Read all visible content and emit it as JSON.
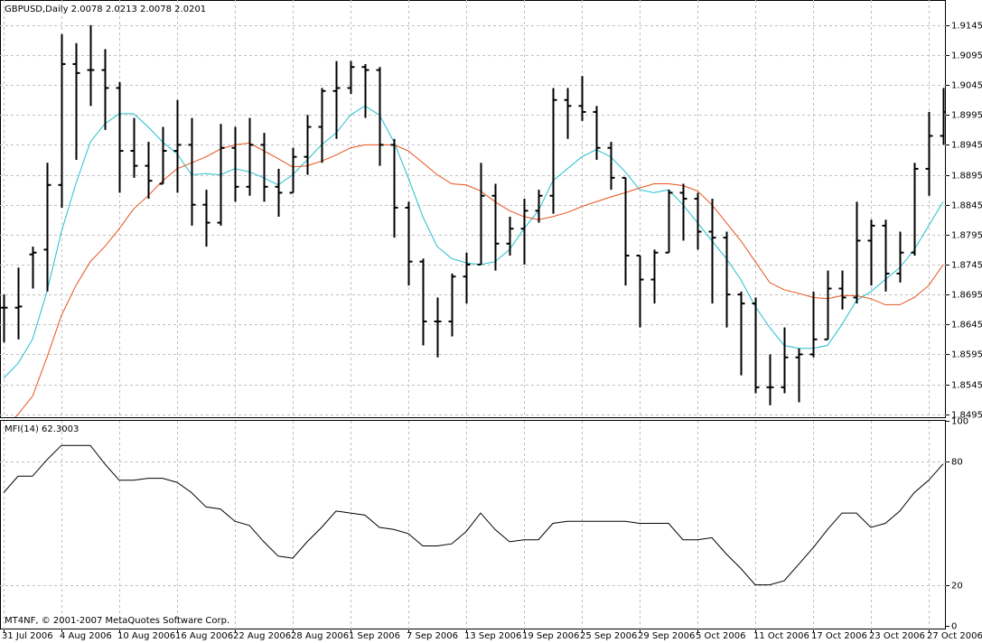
{
  "chart_data": [
    {
      "type": "ohlc",
      "title": "GBPUSD,Daily  2.0078 2.0213 2.0078 2.0201",
      "color": "#000000",
      "open": [
        1.8673,
        1.8673,
        1.8762,
        1.877,
        1.8878,
        1.908,
        1.907,
        1.907,
        1.904,
        1.8935,
        1.891,
        1.888,
        1.8935,
        1.8945,
        1.8845,
        1.8815,
        1.894,
        1.8875,
        1.8945,
        1.8875,
        1.8865,
        1.8925,
        1.8975,
        1.9035,
        1.904,
        1.9075,
        1.907,
        1.8945,
        1.884,
        1.875,
        1.865,
        1.865,
        1.8725,
        1.8745,
        1.886,
        1.878,
        1.8805,
        1.8835,
        1.886,
        1.902,
        1.901,
        1.9,
        1.894,
        1.889,
        1.876,
        1.872,
        1.8765,
        1.8865,
        1.8855,
        1.88,
        1.879,
        1.8695,
        1.868,
        1.854,
        1.854,
        1.859,
        1.8595,
        1.862,
        1.8705,
        1.869,
        1.8785,
        1.881,
        1.873,
        1.8765,
        1.8905,
        1.896
      ],
      "high": [
        1.8695,
        1.874,
        1.8775,
        1.8915,
        1.913,
        1.9115,
        1.9145,
        1.9105,
        1.905,
        1.899,
        1.895,
        1.8975,
        1.902,
        1.899,
        1.887,
        1.898,
        1.8975,
        1.899,
        1.8965,
        1.8905,
        1.894,
        1.8995,
        1.904,
        1.9085,
        1.9085,
        1.908,
        1.9075,
        1.8955,
        1.885,
        1.8755,
        1.869,
        1.873,
        1.8765,
        1.8915,
        1.888,
        1.8825,
        1.8855,
        1.887,
        1.904,
        1.904,
        1.906,
        1.901,
        1.895,
        1.889,
        1.876,
        1.877,
        1.887,
        1.888,
        1.8865,
        1.8855,
        1.88,
        1.87,
        1.869,
        1.8595,
        1.864,
        1.8605,
        1.87,
        1.8735,
        1.8735,
        1.885,
        1.882,
        1.882,
        1.88,
        1.8915,
        1.9,
        1.904
      ],
      "low": [
        1.8615,
        1.862,
        1.8705,
        1.87,
        1.884,
        1.892,
        1.901,
        1.897,
        1.8865,
        1.889,
        1.8855,
        1.888,
        1.8865,
        1.881,
        1.8775,
        1.881,
        1.885,
        1.886,
        1.885,
        1.8825,
        1.8865,
        1.8895,
        1.8915,
        1.8955,
        1.903,
        1.899,
        1.891,
        1.879,
        1.871,
        1.861,
        1.859,
        1.8625,
        1.868,
        1.8745,
        1.8735,
        1.876,
        1.8745,
        1.8815,
        1.883,
        1.8955,
        1.8985,
        1.892,
        1.887,
        1.871,
        1.864,
        1.868,
        1.8765,
        1.8785,
        1.877,
        1.868,
        1.864,
        1.856,
        1.853,
        1.851,
        1.853,
        1.8515,
        1.859,
        1.862,
        1.867,
        1.868,
        1.871,
        1.87,
        1.8715,
        1.876,
        1.886,
        1.8945
      ],
      "close": [
        1.8673,
        1.8675,
        1.8765,
        1.8878,
        1.908,
        1.9065,
        1.907,
        1.904,
        1.8935,
        1.891,
        1.8885,
        1.8935,
        1.8945,
        1.8845,
        1.8815,
        1.894,
        1.8875,
        1.8945,
        1.8875,
        1.8865,
        1.8925,
        1.8975,
        1.9035,
        1.904,
        1.9075,
        1.907,
        1.8945,
        1.884,
        1.875,
        1.865,
        1.865,
        1.8725,
        1.8745,
        1.886,
        1.878,
        1.8805,
        1.8835,
        1.886,
        1.902,
        1.901,
        1.9,
        1.894,
        1.889,
        1.876,
        1.872,
        1.8765,
        1.8865,
        1.8855,
        1.88,
        1.879,
        1.8695,
        1.868,
        1.854,
        1.854,
        1.859,
        1.8595,
        1.862,
        1.8705,
        1.869,
        1.8785,
        1.881,
        1.873,
        1.8765,
        1.8905,
        1.896,
        1.9
      ],
      "series": [
        {
          "color": "#20c0d0",
          "values": [
            1.8555,
            1.858,
            1.862,
            1.87,
            1.88,
            1.888,
            1.895,
            1.898,
            1.8997,
            1.8997,
            1.8975,
            1.895,
            1.893,
            1.8895,
            1.8897,
            1.8895,
            1.8905,
            1.89,
            1.889,
            1.8878,
            1.8895,
            1.892,
            1.8945,
            1.8965,
            1.8995,
            1.901,
            1.8995,
            1.895,
            1.889,
            1.8825,
            1.8775,
            1.8755,
            1.8748,
            1.8745,
            1.875,
            1.877,
            1.8805,
            1.8835,
            1.8885,
            1.8905,
            1.8925,
            1.8937,
            1.8925,
            1.89,
            1.887,
            1.8865,
            1.887,
            1.8845,
            1.8815,
            1.8785,
            1.8755,
            1.872,
            1.8675,
            1.864,
            1.861,
            1.8605,
            1.8605,
            1.861,
            1.8645,
            1.8685,
            1.87,
            1.872,
            1.874,
            1.877,
            1.881,
            1.885
          ]
        },
        {
          "color": "#e8501a",
          "values": [
            1.847,
            1.8495,
            1.8525,
            1.859,
            1.866,
            1.871,
            1.875,
            1.8775,
            1.8805,
            1.8838,
            1.886,
            1.8885,
            1.8905,
            1.8915,
            1.8925,
            1.8938,
            1.8945,
            1.8948,
            1.8935,
            1.8922,
            1.8908,
            1.891,
            1.8918,
            1.8928,
            1.894,
            1.8945,
            1.8945,
            1.8945,
            1.8935,
            1.8915,
            1.8895,
            1.888,
            1.8878,
            1.8868,
            1.885,
            1.8835,
            1.8825,
            1.882,
            1.8825,
            1.8832,
            1.8842,
            1.885,
            1.8858,
            1.8865,
            1.8873,
            1.888,
            1.888,
            1.8877,
            1.8868,
            1.8845,
            1.8815,
            1.8785,
            1.875,
            1.8715,
            1.8703,
            1.8697,
            1.869,
            1.8688,
            1.8693,
            1.8693,
            1.8688,
            1.8678,
            1.8678,
            1.869,
            1.871,
            1.8745
          ]
        }
      ],
      "ylim": [
        1.849,
        1.9187
      ],
      "yticks": [
        1.9145,
        1.9095,
        1.9045,
        1.8995,
        1.8945,
        1.8895,
        1.8845,
        1.8795,
        1.8745,
        1.8695,
        1.8645,
        1.8595,
        1.8545,
        1.8495
      ],
      "grid": true
    },
    {
      "type": "line",
      "title": "MFI(14) 62.3003",
      "annotation": "MT4NF, © 2001-2007 MetaQuotes Software Corp.",
      "color": "#000000",
      "categories": [
        "31 Jul 2006",
        null,
        null,
        null,
        "4 Aug 2006",
        null,
        null,
        null,
        "10 Aug 2006",
        null,
        null,
        null,
        "16 Aug 2006",
        null,
        null,
        null,
        "22 Aug 2006",
        null,
        null,
        null,
        "28 Aug 2006",
        null,
        null,
        null,
        "1 Sep 2006",
        null,
        null,
        null,
        "7 Sep 2006",
        null,
        null,
        null,
        "13 Sep 2006",
        null,
        null,
        null,
        "19 Sep 2006",
        null,
        null,
        null,
        "25 Sep 2006",
        null,
        null,
        null,
        "29 Sep 2006",
        null,
        null,
        null,
        "5 Oct 2006",
        null,
        null,
        null,
        "11 Oct 2006",
        null,
        null,
        null,
        "17 Oct 2006",
        null,
        null,
        null,
        "23 Oct 2006",
        null,
        null,
        null,
        "27 Oct 2006",
        null
      ],
      "values": [
        65,
        73,
        73,
        81,
        88,
        88,
        88,
        79,
        71,
        71,
        72,
        72,
        70,
        65,
        58,
        57,
        51,
        49,
        41,
        34,
        33,
        41,
        48,
        56,
        55,
        54,
        48,
        47,
        45,
        39,
        39,
        40,
        46,
        55,
        47,
        41,
        42,
        42,
        50,
        51,
        51,
        51,
        51,
        51,
        50,
        50,
        50,
        42,
        42,
        43,
        35,
        28,
        20,
        20,
        22,
        30,
        38,
        47,
        55,
        55,
        48,
        50,
        56,
        65,
        71,
        79
      ],
      "ylim": [
        0,
        100
      ],
      "yticks": [
        100,
        80,
        20,
        0
      ],
      "grid": true
    }
  ]
}
